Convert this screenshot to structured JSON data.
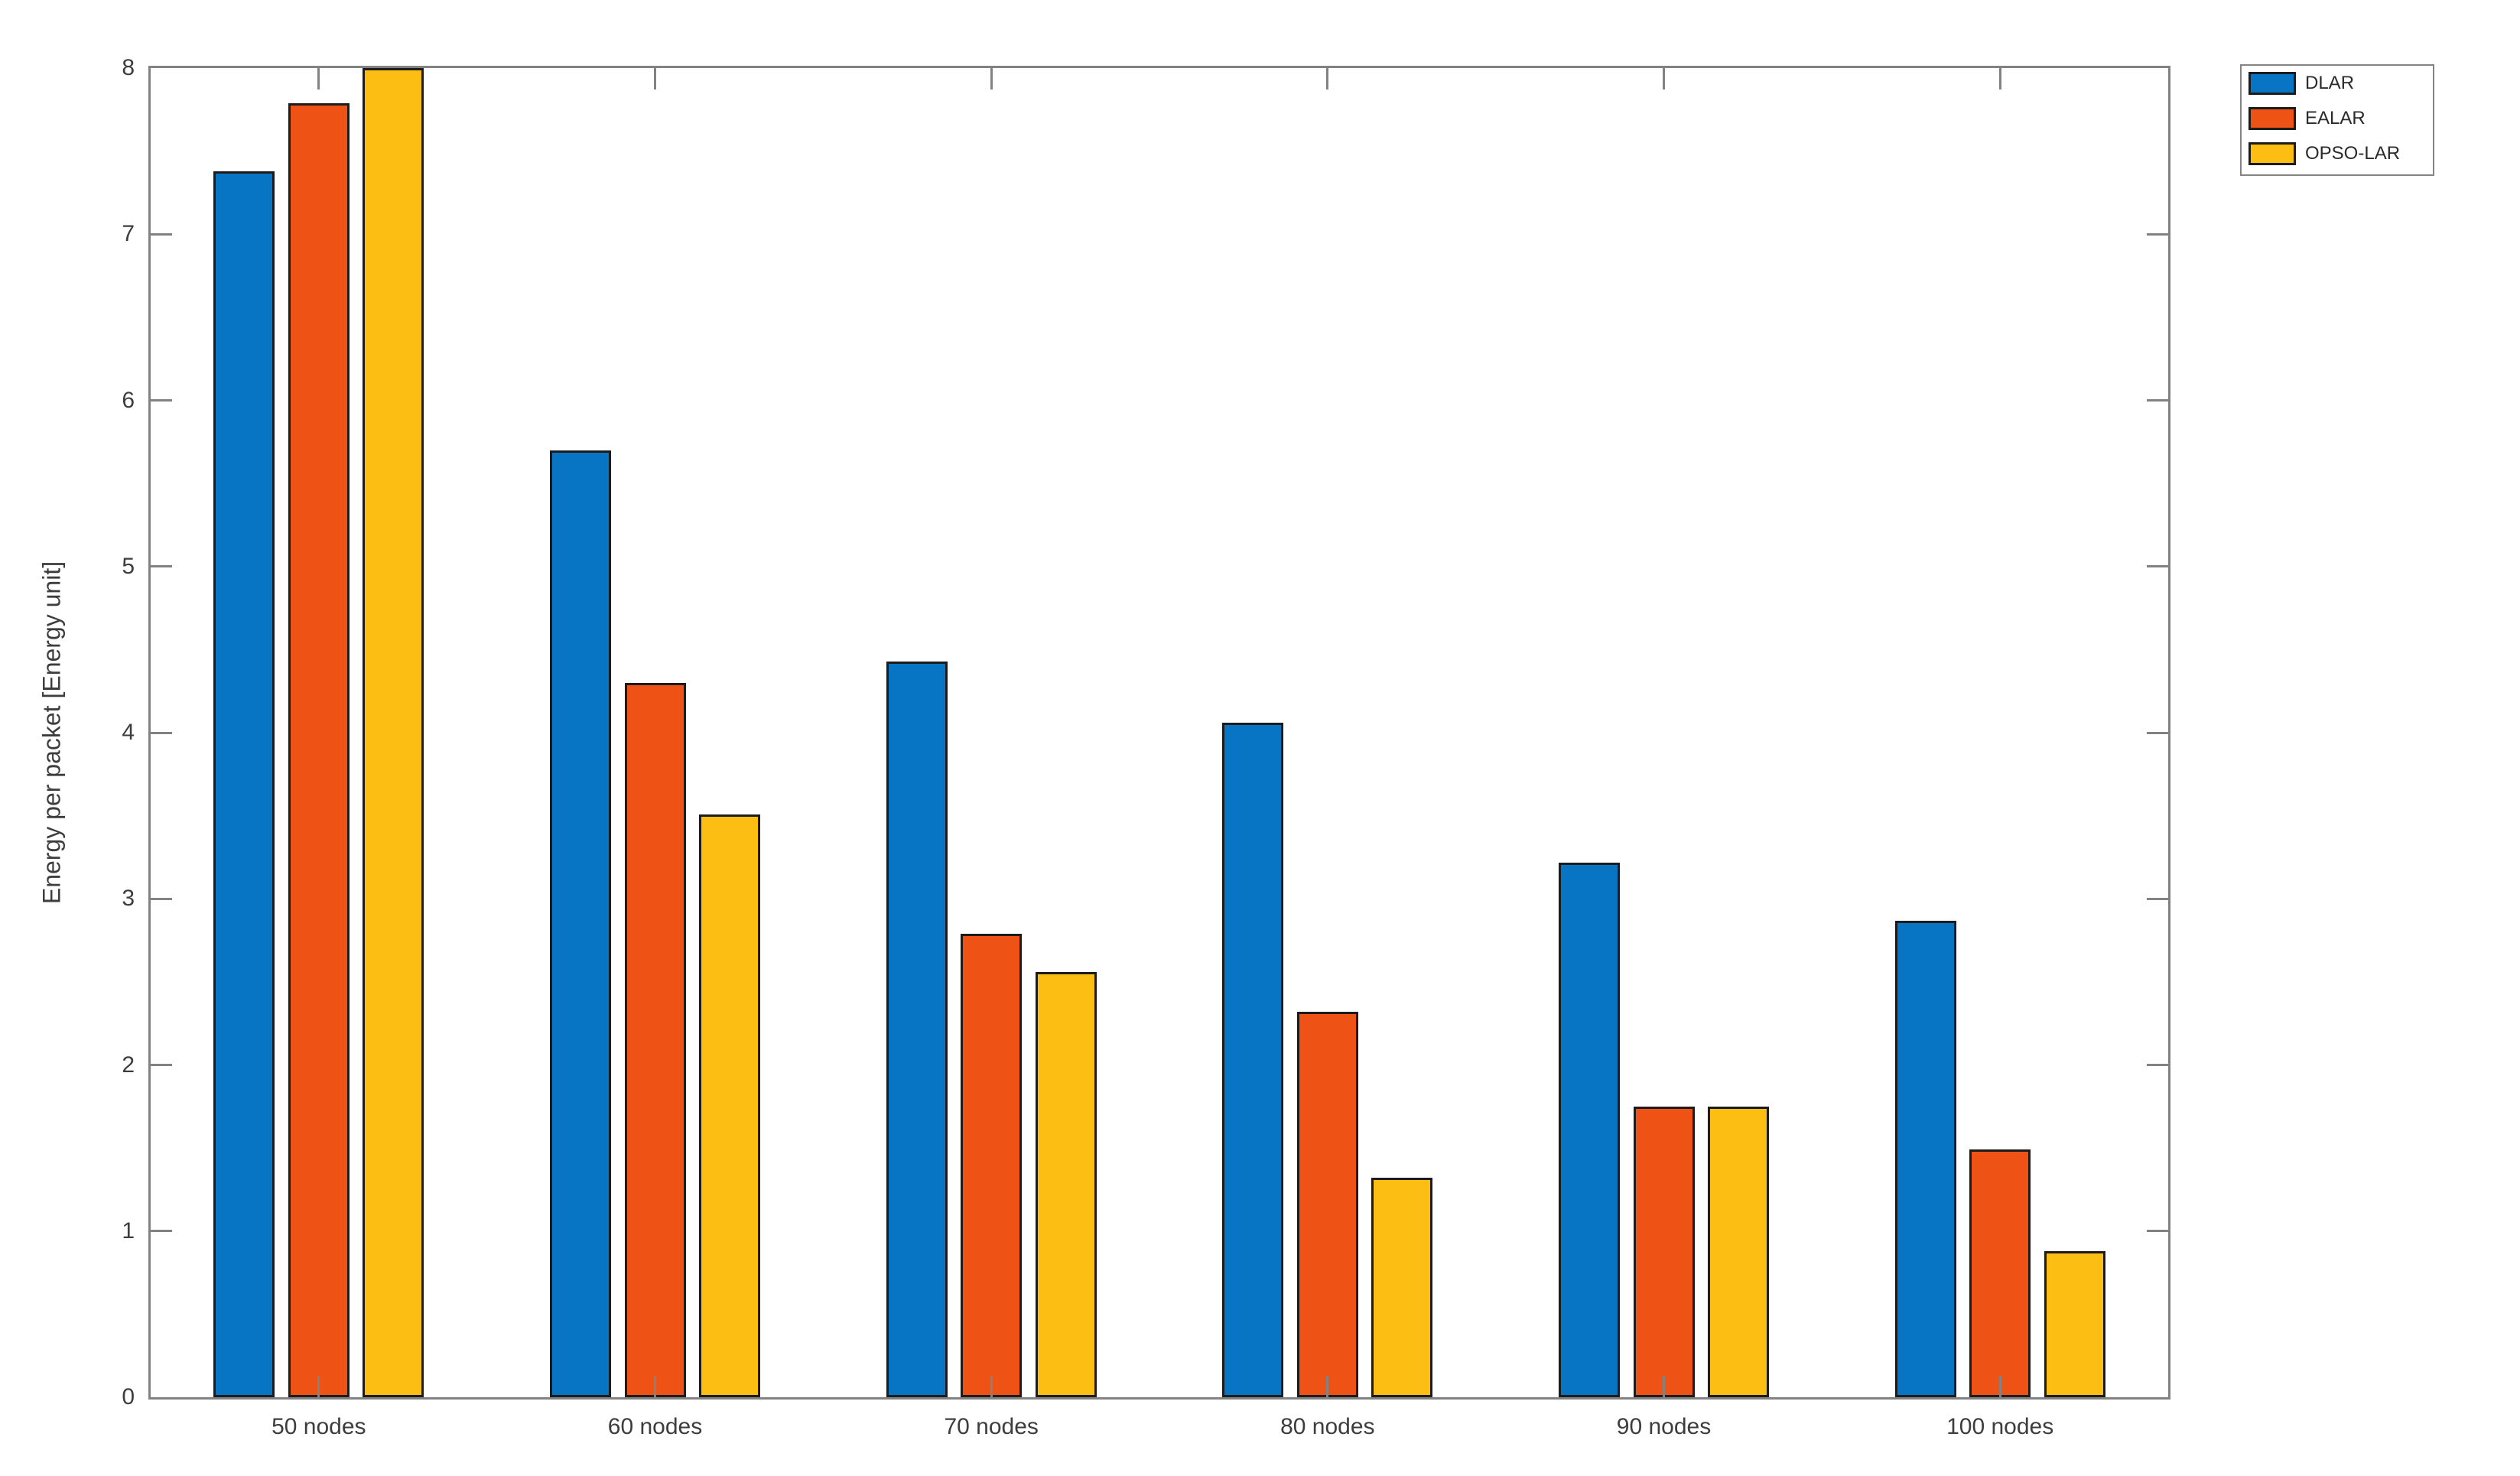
{
  "chart_data": {
    "type": "bar",
    "title": "",
    "xlabel": "",
    "ylabel": "Energy per packet [Energy unit]",
    "categories": [
      "50 nodes",
      "60 nodes",
      "70 nodes",
      "80 nodes",
      "90 nodes",
      "100 nodes"
    ],
    "series": [
      {
        "name": "DLAR",
        "color": "#0874C4",
        "values": [
          7.38,
          5.7,
          4.43,
          4.06,
          3.22,
          2.87
        ]
      },
      {
        "name": "EALAR",
        "color": "#EE5214",
        "values": [
          7.79,
          4.3,
          2.79,
          2.32,
          1.75,
          1.49
        ]
      },
      {
        "name": "OPSO-LAR",
        "color": "#FDBE13",
        "values": [
          8.0,
          3.51,
          2.56,
          1.32,
          1.75,
          0.88
        ]
      }
    ],
    "ylim": [
      0,
      8
    ],
    "yticks": [
      0,
      1,
      2,
      3,
      4,
      5,
      6,
      7,
      8
    ],
    "grid": false,
    "legend_position": "outside-top-right",
    "box": true,
    "tick_direction": "in",
    "axis_color": "#828282",
    "tick_text_color": "#3d3d3d",
    "bar_edge_color": "#1c1c1c",
    "background_color": "#ffffff"
  }
}
